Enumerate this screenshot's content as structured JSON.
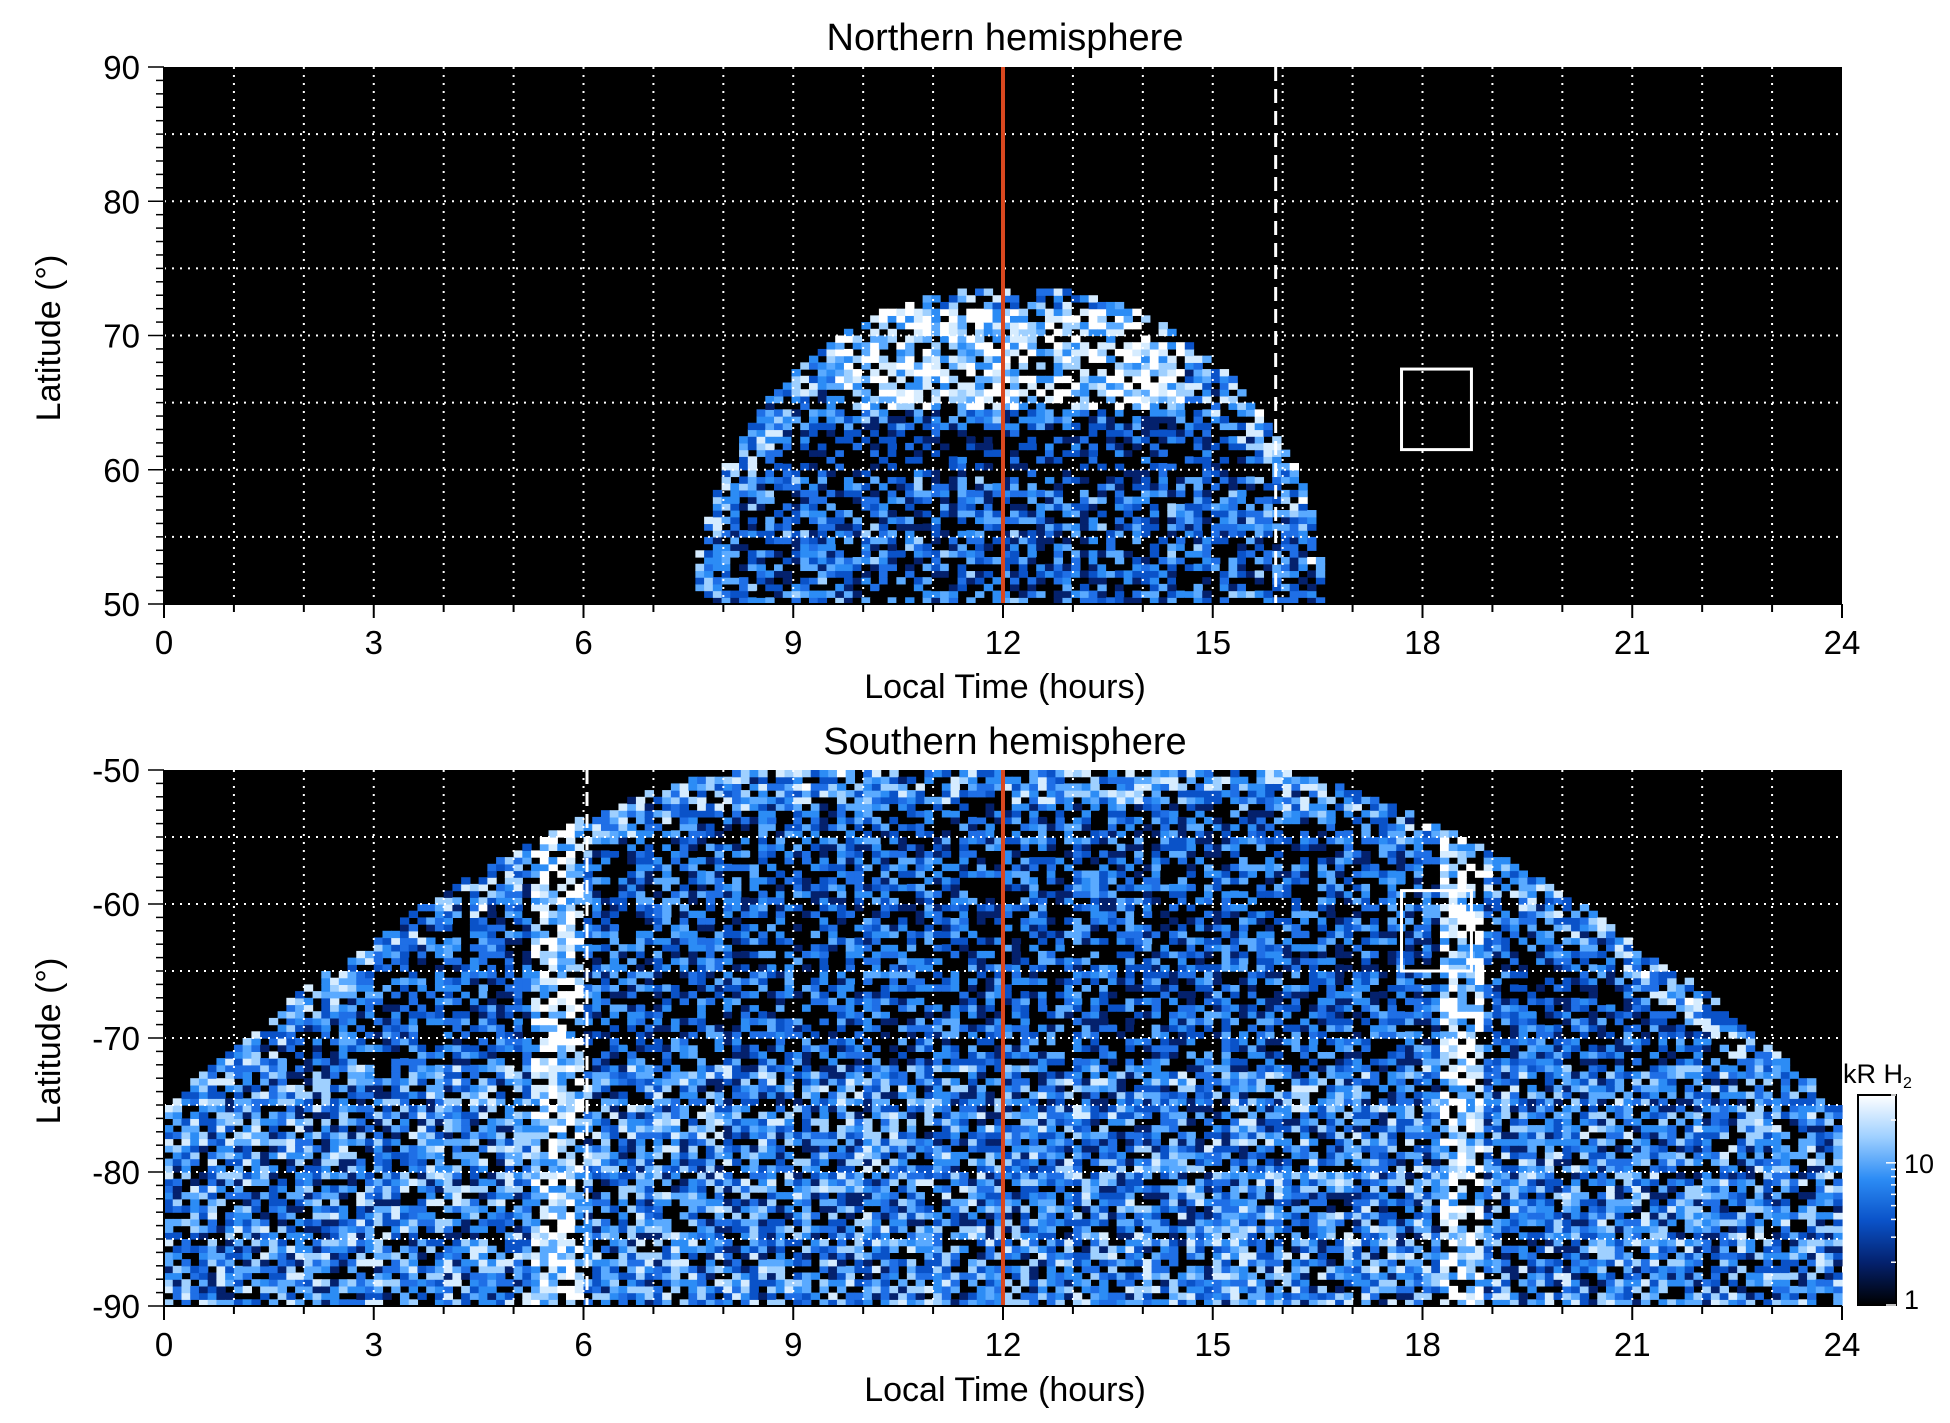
{
  "chart_data": [
    {
      "type": "heatmap",
      "title": "Northern hemisphere",
      "xlabel": "Local Time (hours)",
      "ylabel": "Latitude (°)",
      "xlim": [
        0,
        24
      ],
      "ylim": [
        50,
        90
      ],
      "xticks": [
        "0",
        "3",
        "6",
        "9",
        "12",
        "15",
        "18",
        "21",
        "24"
      ],
      "yticks": [
        "50",
        "60",
        "70",
        "80",
        "90"
      ],
      "grid": true,
      "emission_region": {
        "lt_range": [
          7.6,
          16.6
        ],
        "lat_range": [
          50,
          73.5
        ]
      },
      "bright_arc": {
        "lt_range": [
          9.5,
          14.5
        ],
        "lat_range": [
          64,
          72
        ]
      },
      "markers": [
        {
          "kind": "vertical-line",
          "x": 12.0,
          "style": "solid",
          "color": "#d9481f"
        },
        {
          "kind": "vertical-line",
          "x": 15.9,
          "style": "dashed",
          "color": "#ffffff"
        },
        {
          "kind": "box",
          "x": [
            17.7,
            18.7
          ],
          "y": [
            61.5,
            67.5
          ],
          "color": "#ffffff"
        }
      ]
    },
    {
      "type": "heatmap",
      "title": "Southern hemisphere",
      "xlabel": "Local Time (hours)",
      "ylabel": "Latitude (°)",
      "xlim": [
        0,
        24
      ],
      "ylim": [
        -90,
        -50
      ],
      "xticks": [
        "0",
        "3",
        "6",
        "9",
        "12",
        "15",
        "18",
        "21",
        "24"
      ],
      "yticks": [
        "-90",
        "-80",
        "-70",
        "-60",
        "-50"
      ],
      "grid": true,
      "emission_region": {
        "lt_range": [
          0,
          24
        ],
        "edge_lat_at_midnight": -75.5,
        "edge_lat_at_noon": -50
      },
      "bright_bands": [
        {
          "lt": 5.6,
          "lat_range": [
            -90,
            -50
          ]
        },
        {
          "lt": 18.5,
          "lat_range": [
            -90,
            -50
          ]
        }
      ],
      "markers": [
        {
          "kind": "vertical-line",
          "x": 12.0,
          "style": "solid",
          "color": "#d9481f"
        },
        {
          "kind": "vertical-line",
          "x": 6.05,
          "style": "dashed",
          "color": "#ffffff"
        },
        {
          "kind": "box",
          "x": [
            17.7,
            18.7
          ],
          "y": [
            -65,
            -59
          ],
          "color": "#ffffff"
        }
      ]
    }
  ],
  "colorbar": {
    "label_main": "kR H",
    "label_sub": "2",
    "scale": "log",
    "range": [
      1,
      30
    ],
    "ticks": [
      "1",
      "10"
    ],
    "colors": [
      "#000000",
      "#04216d",
      "#0a52c8",
      "#2c8cf5",
      "#9fd0ff",
      "#ffffff"
    ]
  }
}
